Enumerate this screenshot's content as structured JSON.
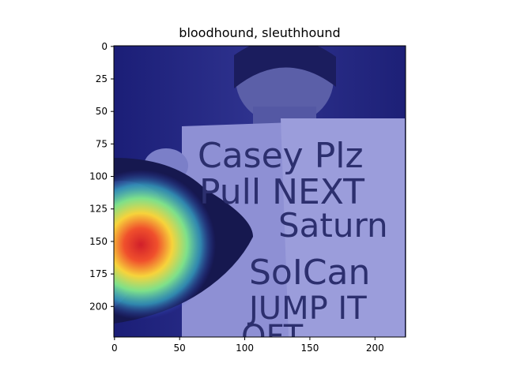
{
  "figure": {
    "title": "bloodhound, sleuthhound",
    "x_ticks": [
      "0",
      "50",
      "100",
      "150",
      "200"
    ],
    "y_ticks": [
      "0",
      "25",
      "50",
      "75",
      "100",
      "125",
      "150",
      "175",
      "200"
    ],
    "sign_text": [
      "Casey Plz",
      "Pull NEXT",
      "Saturn",
      "SoICan",
      "JUMP IT",
      "OFT"
    ]
  },
  "colors": {
    "overlay": "#3a3fd0",
    "heat_center": "#d8222a",
    "heat_mid": "#f6d23a",
    "heat_outer": "#46c2c7"
  }
}
